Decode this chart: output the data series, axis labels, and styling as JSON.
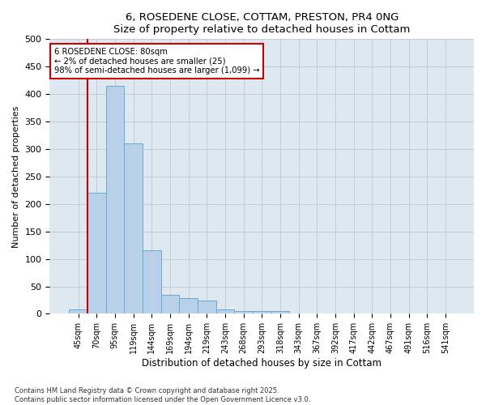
{
  "title1": "6, ROSEDENE CLOSE, COTTAM, PRESTON, PR4 0NG",
  "title2": "Size of property relative to detached houses in Cottam",
  "xlabel": "Distribution of detached houses by size in Cottam",
  "ylabel": "Number of detached properties",
  "bar_categories": [
    "45sqm",
    "70sqm",
    "95sqm",
    "119sqm",
    "144sqm",
    "169sqm",
    "194sqm",
    "219sqm",
    "243sqm",
    "268sqm",
    "293sqm",
    "318sqm",
    "343sqm",
    "367sqm",
    "392sqm",
    "417sqm",
    "442sqm",
    "467sqm",
    "491sqm",
    "516sqm",
    "541sqm"
  ],
  "bar_values": [
    8,
    220,
    415,
    310,
    115,
    35,
    28,
    25,
    8,
    5,
    5,
    5,
    0,
    0,
    0,
    0,
    0,
    0,
    0,
    0,
    0
  ],
  "bar_color": "#b8d0e8",
  "bar_edge_color": "#6aaad4",
  "vline_color": "#cc0000",
  "annotation_title": "6 ROSEDENE CLOSE: 80sqm",
  "annotation_line1": "← 2% of detached houses are smaller (25)",
  "annotation_line2": "98% of semi-detached houses are larger (1,099) →",
  "annotation_edge_color": "#cc0000",
  "ylim": [
    0,
    500
  ],
  "yticks": [
    0,
    50,
    100,
    150,
    200,
    250,
    300,
    350,
    400,
    450,
    500
  ],
  "footer1": "Contains HM Land Registry data © Crown copyright and database right 2025.",
  "footer2": "Contains public sector information licensed under the Open Government Licence v3.0.",
  "bg_color": "#ffffff",
  "plot_bg_color": "#dde8f0"
}
